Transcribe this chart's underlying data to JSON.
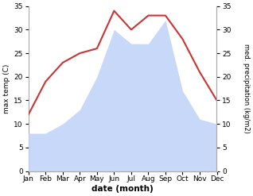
{
  "months": [
    "Jan",
    "Feb",
    "Mar",
    "Apr",
    "May",
    "Jun",
    "Jul",
    "Aug",
    "Sep",
    "Oct",
    "Nov",
    "Dec"
  ],
  "temperature": [
    12,
    19,
    23,
    25,
    26,
    34,
    30,
    33,
    33,
    28,
    21,
    15
  ],
  "precipitation": [
    8,
    8,
    10,
    13,
    20,
    30,
    27,
    27,
    32,
    17,
    11,
    10
  ],
  "temp_color": "#cc3333",
  "precip_fill_color": "#c8d8f8",
  "ylim_left": [
    0,
    35
  ],
  "ylim_right": [
    0,
    35
  ],
  "yticks": [
    0,
    5,
    10,
    15,
    20,
    25,
    30,
    35
  ],
  "xlabel": "date (month)",
  "ylabel_left": "max temp (C)",
  "ylabel_right": "med. precipitation (kg/m2)",
  "background_color": "#ffffff",
  "spine_color": "#aaaaaa"
}
